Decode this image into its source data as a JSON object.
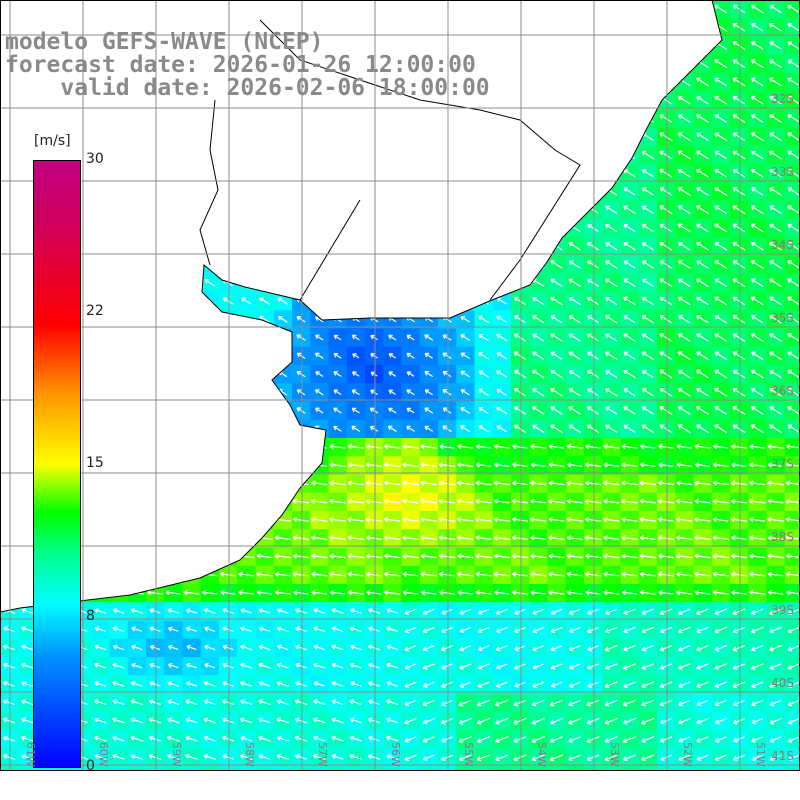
{
  "title": {
    "model": "modelo GEFS-WAVE (NCEP)",
    "forecast": "forecast date: 2026-01-26 12:00:00",
    "valid": "    valid date: 2026-02-06 18:00:00"
  },
  "colorbar": {
    "unit": "[m/s]",
    "labels": [
      "30",
      "22",
      "15",
      "8",
      "0"
    ],
    "range": [
      0,
      30
    ]
  },
  "lat_labels": [
    "32S",
    "33S",
    "34S",
    "35S",
    "36S",
    "37S",
    "38S",
    "39S",
    "40S",
    "41S"
  ],
  "lon_labels": [
    "61W",
    "60W",
    "59W",
    "58W",
    "57W",
    "56W",
    "55W",
    "54W",
    "53W",
    "52W",
    "51W"
  ],
  "colors": {
    "land": "#ffffff",
    "grid": "#8c8c8c",
    "title": "#8a8a8a",
    "arrow": "#ffffff"
  }
}
